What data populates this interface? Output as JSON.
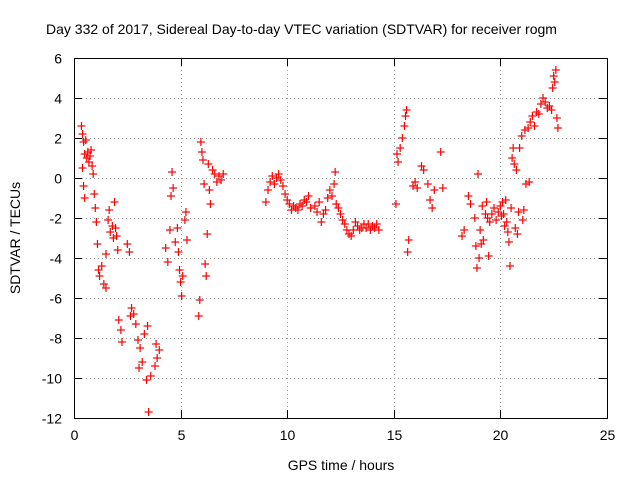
{
  "chart_data": {
    "type": "scatter",
    "title": "Day 332 of 2017, Sidereal Day-to-day VTEC variation (SDTVAR) for receiver rogm",
    "xlabel": "GPS time / hours",
    "ylabel": "SDTVAR / TECUs",
    "xlim": [
      0,
      25
    ],
    "ylim": [
      -12,
      6
    ],
    "xticks": [
      0,
      5,
      10,
      15,
      20,
      25
    ],
    "yticks": [
      -12,
      -10,
      -8,
      -6,
      -4,
      -2,
      0,
      2,
      4,
      6
    ],
    "grid": true,
    "marker": "+",
    "color": "#ff0000",
    "series": [
      {
        "name": "SDTVAR",
        "points": [
          [
            0.35,
            2.6
          ],
          [
            0.4,
            2.2
          ],
          [
            0.45,
            1.8
          ],
          [
            0.5,
            1.2
          ],
          [
            0.4,
            0.5
          ],
          [
            0.45,
            -0.4
          ],
          [
            0.5,
            -1.0
          ],
          [
            0.55,
            1.9
          ],
          [
            0.6,
            1.0
          ],
          [
            0.65,
            1.3
          ],
          [
            0.7,
            0.8
          ],
          [
            0.75,
            1.1
          ],
          [
            0.8,
            1.4
          ],
          [
            0.85,
            0.6
          ],
          [
            0.9,
            0.2
          ],
          [
            0.95,
            -0.8
          ],
          [
            1.0,
            -1.5
          ],
          [
            1.05,
            -2.2
          ],
          [
            1.1,
            -3.3
          ],
          [
            1.15,
            -4.6
          ],
          [
            1.2,
            -4.9
          ],
          [
            1.3,
            -4.4
          ],
          [
            1.4,
            -5.3
          ],
          [
            1.5,
            -5.5
          ],
          [
            1.5,
            -3.8
          ],
          [
            1.6,
            -2.1
          ],
          [
            1.65,
            -1.6
          ],
          [
            1.7,
            -2.7
          ],
          [
            1.8,
            -2.4
          ],
          [
            1.85,
            -3.0
          ],
          [
            1.9,
            -1.2
          ],
          [
            1.95,
            -2.5
          ],
          [
            2.0,
            -2.9
          ],
          [
            2.05,
            -3.6
          ],
          [
            2.1,
            -7.1
          ],
          [
            2.2,
            -7.6
          ],
          [
            2.25,
            -8.2
          ],
          [
            2.5,
            -3.3
          ],
          [
            2.6,
            -3.7
          ],
          [
            2.65,
            -6.9
          ],
          [
            2.7,
            -6.5
          ],
          [
            2.8,
            -6.8
          ],
          [
            2.9,
            -7.3
          ],
          [
            3.0,
            -8.1
          ],
          [
            3.05,
            -9.5
          ],
          [
            3.1,
            -8.5
          ],
          [
            3.2,
            -9.2
          ],
          [
            3.3,
            -7.8
          ],
          [
            3.4,
            -10.1
          ],
          [
            3.45,
            -7.4
          ],
          [
            3.5,
            -11.7
          ],
          [
            3.6,
            -9.9
          ],
          [
            3.8,
            -9.4
          ],
          [
            3.85,
            -8.3
          ],
          [
            3.9,
            -9.0
          ],
          [
            4.0,
            -8.6
          ],
          [
            4.3,
            -3.5
          ],
          [
            4.4,
            -4.2
          ],
          [
            4.5,
            -2.6
          ],
          [
            4.55,
            -0.9
          ],
          [
            4.6,
            0.3
          ],
          [
            4.65,
            -0.5
          ],
          [
            4.75,
            -3.2
          ],
          [
            4.85,
            -2.5
          ],
          [
            4.9,
            -3.7
          ],
          [
            4.95,
            -4.6
          ],
          [
            5.0,
            -5.2
          ],
          [
            5.05,
            -5.9
          ],
          [
            5.1,
            -4.9
          ],
          [
            5.2,
            -2.1
          ],
          [
            5.25,
            -1.7
          ],
          [
            5.3,
            -3.1
          ],
          [
            5.85,
            -6.9
          ],
          [
            5.9,
            -6.1
          ],
          [
            5.95,
            1.8
          ],
          [
            6.0,
            1.3
          ],
          [
            6.05,
            0.9
          ],
          [
            6.1,
            -0.3
          ],
          [
            6.15,
            -4.3
          ],
          [
            6.2,
            -4.9
          ],
          [
            6.25,
            -2.8
          ],
          [
            6.3,
            0.7
          ],
          [
            6.35,
            -0.6
          ],
          [
            6.4,
            -1.3
          ],
          [
            6.5,
            0.4
          ],
          [
            6.6,
            0.2
          ],
          [
            6.7,
            -0.2
          ],
          [
            6.8,
            0.1
          ],
          [
            6.9,
            -0.1
          ],
          [
            7.0,
            0.2
          ],
          [
            9.0,
            -1.2
          ],
          [
            9.1,
            -0.6
          ],
          [
            9.2,
            -0.2
          ],
          [
            9.3,
            0.1
          ],
          [
            9.4,
            -0.3
          ],
          [
            9.5,
            0.0
          ],
          [
            9.6,
            0.2
          ],
          [
            9.7,
            -0.1
          ],
          [
            9.8,
            -0.4
          ],
          [
            9.9,
            -0.8
          ],
          [
            10.0,
            -1.1
          ],
          [
            10.1,
            -1.3
          ],
          [
            10.2,
            -1.6
          ],
          [
            10.3,
            -1.4
          ],
          [
            10.4,
            -1.5
          ],
          [
            10.5,
            -1.6
          ],
          [
            10.6,
            -1.3
          ],
          [
            10.7,
            -1.4
          ],
          [
            10.8,
            -1.1
          ],
          [
            10.9,
            -1.2
          ],
          [
            11.0,
            -0.9
          ],
          [
            11.1,
            -1.5
          ],
          [
            11.3,
            -1.4
          ],
          [
            11.4,
            -1.7
          ],
          [
            11.5,
            -1.2
          ],
          [
            11.6,
            -2.2
          ],
          [
            11.7,
            -1.8
          ],
          [
            11.8,
            -1.6
          ],
          [
            11.9,
            -1.0
          ],
          [
            12.0,
            -0.6
          ],
          [
            12.1,
            -0.9
          ],
          [
            12.2,
            -0.3
          ],
          [
            12.25,
            0.3
          ],
          [
            12.3,
            -1.3
          ],
          [
            12.4,
            -1.5
          ],
          [
            12.5,
            -1.8
          ],
          [
            12.6,
            -2.1
          ],
          [
            12.7,
            -2.3
          ],
          [
            12.8,
            -2.6
          ],
          [
            12.9,
            -2.8
          ],
          [
            13.0,
            -2.9
          ],
          [
            13.1,
            -2.6
          ],
          [
            13.2,
            -2.2
          ],
          [
            13.3,
            -2.4
          ],
          [
            13.4,
            -2.6
          ],
          [
            13.5,
            -2.5
          ],
          [
            13.6,
            -2.3
          ],
          [
            13.7,
            -2.5
          ],
          [
            13.8,
            -2.3
          ],
          [
            13.9,
            -2.6
          ],
          [
            14.0,
            -2.4
          ],
          [
            14.1,
            -2.5
          ],
          [
            14.2,
            -2.3
          ],
          [
            14.3,
            -2.6
          ],
          [
            15.1,
            -1.3
          ],
          [
            15.15,
            1.2
          ],
          [
            15.2,
            0.8
          ],
          [
            15.3,
            1.5
          ],
          [
            15.4,
            2.0
          ],
          [
            15.5,
            2.6
          ],
          [
            15.55,
            3.1
          ],
          [
            15.6,
            3.4
          ],
          [
            15.65,
            -3.7
          ],
          [
            15.7,
            -3.1
          ],
          [
            15.9,
            -0.4
          ],
          [
            16.0,
            -0.2
          ],
          [
            16.1,
            -0.5
          ],
          [
            16.3,
            0.6
          ],
          [
            16.4,
            0.4
          ],
          [
            16.6,
            -0.3
          ],
          [
            16.7,
            -1.1
          ],
          [
            16.8,
            -1.5
          ],
          [
            16.9,
            -0.6
          ],
          [
            17.2,
            1.3
          ],
          [
            17.3,
            -0.5
          ],
          [
            18.2,
            -2.9
          ],
          [
            18.3,
            -2.6
          ],
          [
            18.5,
            -0.9
          ],
          [
            18.6,
            -1.3
          ],
          [
            18.8,
            -2.0
          ],
          [
            18.85,
            -3.4
          ],
          [
            18.9,
            -4.5
          ],
          [
            18.95,
            0.2
          ],
          [
            19.0,
            -4.0
          ],
          [
            19.05,
            -2.6
          ],
          [
            19.1,
            -3.3
          ],
          [
            19.15,
            -1.4
          ],
          [
            19.2,
            -3.1
          ],
          [
            19.3,
            -1.8
          ],
          [
            19.35,
            -1.2
          ],
          [
            19.4,
            -2.0
          ],
          [
            19.45,
            -3.9
          ],
          [
            19.5,
            -2.2
          ],
          [
            19.6,
            -1.8
          ],
          [
            19.7,
            -1.5
          ],
          [
            19.8,
            -2.1
          ],
          [
            19.9,
            -1.7
          ],
          [
            20.0,
            -1.4
          ],
          [
            20.05,
            -1.9
          ],
          [
            20.1,
            -1.2
          ],
          [
            20.15,
            -1.8
          ],
          [
            20.2,
            -2.4
          ],
          [
            20.25,
            -1.1
          ],
          [
            20.3,
            -2.2
          ],
          [
            20.35,
            -2.7
          ],
          [
            20.4,
            -3.2
          ],
          [
            20.45,
            -4.4
          ],
          [
            20.5,
            -1.5
          ],
          [
            20.55,
            1.0
          ],
          [
            20.6,
            1.5
          ],
          [
            20.65,
            0.7
          ],
          [
            20.7,
            -2.5
          ],
          [
            20.75,
            0.4
          ],
          [
            20.8,
            -2.8
          ],
          [
            20.85,
            -1.7
          ],
          [
            20.9,
            1.5
          ],
          [
            21.0,
            2.1
          ],
          [
            21.05,
            -2.1
          ],
          [
            21.1,
            -1.6
          ],
          [
            21.15,
            2.4
          ],
          [
            21.2,
            -0.3
          ],
          [
            21.3,
            2.5
          ],
          [
            21.35,
            -0.2
          ],
          [
            21.4,
            2.8
          ],
          [
            21.5,
            3.1
          ],
          [
            21.6,
            2.6
          ],
          [
            21.7,
            3.3
          ],
          [
            21.8,
            3.2
          ],
          [
            21.9,
            3.7
          ],
          [
            22.0,
            4.0
          ],
          [
            22.1,
            3.8
          ],
          [
            22.2,
            3.5
          ],
          [
            22.3,
            3.6
          ],
          [
            22.4,
            3.4
          ],
          [
            22.45,
            4.5
          ],
          [
            22.5,
            5.1
          ],
          [
            22.55,
            4.8
          ],
          [
            22.6,
            5.4
          ],
          [
            22.65,
            3.0
          ],
          [
            22.7,
            2.5
          ]
        ]
      }
    ]
  }
}
